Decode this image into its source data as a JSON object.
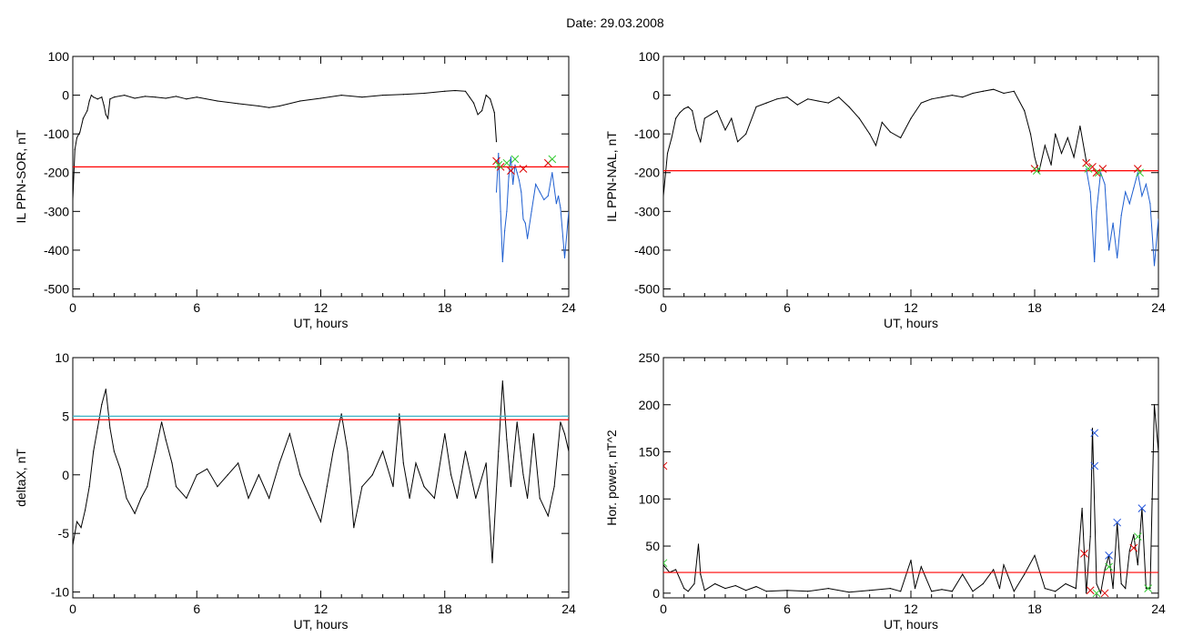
{
  "title": "Date:  29.03.2008",
  "colors": {
    "trace": "#000000",
    "threshold": "#ff0000",
    "threshold2": "#3cb4c8",
    "marked": "#1f5fd0",
    "marker_red": "#dd0000",
    "marker_green": "#33cc33",
    "marker_blue": "#2255dd"
  },
  "chart_data": [
    {
      "type": "line",
      "panel": "top-left",
      "xlabel": "UT, hours",
      "ylabel": "IL PPN-SOR, nT",
      "xlim": [
        0,
        24
      ],
      "ylim": [
        -520,
        100
      ],
      "xticks": [
        "0",
        "6",
        "12",
        "18",
        "24"
      ],
      "yticks": [
        "100",
        "0",
        "-100",
        "-200",
        "-300",
        "-400",
        "-500"
      ],
      "threshold": -185,
      "series": [
        {
          "x": [
            0,
            0.1,
            0.2,
            0.35,
            0.5,
            0.7,
            0.8,
            0.9,
            1.0,
            1.2,
            1.4,
            1.5,
            1.6,
            1.7,
            1.8,
            2.0,
            2.5,
            3,
            3.5,
            4,
            4.5,
            5,
            5.5,
            6,
            7,
            8,
            9,
            9.5,
            10,
            11,
            12,
            13,
            14,
            15,
            16,
            17,
            18,
            18.5,
            19,
            19.2,
            19.4,
            19.6,
            19.8,
            20,
            20.2,
            20.4,
            20.5
          ],
          "y": [
            -270,
            -140,
            -110,
            -95,
            -60,
            -40,
            -15,
            0,
            -5,
            -10,
            -5,
            -25,
            -50,
            -60,
            -10,
            -5,
            0,
            -8,
            -3,
            -5,
            -8,
            -3,
            -10,
            -5,
            -15,
            -22,
            -28,
            -32,
            -28,
            -15,
            -8,
            0,
            -5,
            0,
            2,
            5,
            10,
            12,
            10,
            -5,
            -20,
            -50,
            -40,
            0,
            -10,
            -45,
            -120
          ]
        },
        {
          "x": [
            20.5,
            20.6,
            20.7,
            20.8,
            20.9,
            21.0,
            21.1,
            21.2,
            21.3,
            21.4,
            21.5,
            21.6,
            21.7,
            21.8,
            21.9,
            22.0,
            22.2,
            22.4,
            22.6,
            22.8,
            23.0,
            23.2,
            23.4,
            23.5,
            23.6,
            23.8,
            24.0
          ],
          "y": [
            -250,
            -150,
            -300,
            -430,
            -350,
            -300,
            -210,
            -160,
            -230,
            -180,
            -200,
            -220,
            -250,
            -320,
            -330,
            -370,
            -300,
            -230,
            -250,
            -270,
            -260,
            -200,
            -280,
            -260,
            -290,
            -420,
            -300
          ]
        }
      ],
      "markers_red": [
        [
          20.5,
          -170
        ],
        [
          20.7,
          -185
        ],
        [
          21.2,
          -195
        ],
        [
          21.8,
          -190
        ],
        [
          23.0,
          -175
        ]
      ],
      "markers_green": [
        [
          20.6,
          -180
        ],
        [
          21.0,
          -175
        ],
        [
          21.4,
          -165
        ],
        [
          23.2,
          -165
        ]
      ]
    },
    {
      "type": "line",
      "panel": "top-right",
      "xlabel": "UT, hours",
      "ylabel": "IL PPN-NAL, nT",
      "xlim": [
        0,
        24
      ],
      "ylim": [
        -520,
        100
      ],
      "xticks": [
        "0",
        "6",
        "12",
        "18",
        "24"
      ],
      "yticks": [
        "100",
        "0",
        "-100",
        "-200",
        "-300",
        "-400",
        "-500"
      ],
      "threshold": -195,
      "series": [
        {
          "x": [
            0,
            0.2,
            0.4,
            0.6,
            0.8,
            1.0,
            1.2,
            1.4,
            1.6,
            1.8,
            2.0,
            2.3,
            2.6,
            3.0,
            3.3,
            3.6,
            4.0,
            4.5,
            5.0,
            5.5,
            6.0,
            6.5,
            7.0,
            7.5,
            8.0,
            8.5,
            9.0,
            9.5,
            10.0,
            10.3,
            10.6,
            11.0,
            11.5,
            12.0,
            12.5,
            13.0,
            13.5,
            14.0,
            14.5,
            15.0,
            15.5,
            16.0,
            16.5,
            17.0,
            17.5,
            17.8,
            18.0,
            18.2,
            18.5,
            18.8,
            19.0,
            19.3,
            19.6,
            19.9,
            20.2,
            20.5
          ],
          "y": [
            -260,
            -150,
            -110,
            -60,
            -45,
            -35,
            -30,
            -40,
            -90,
            -120,
            -60,
            -50,
            -40,
            -90,
            -60,
            -120,
            -100,
            -30,
            -20,
            -10,
            -5,
            -25,
            -10,
            -15,
            -20,
            -5,
            -30,
            -60,
            -100,
            -130,
            -70,
            -95,
            -110,
            -60,
            -20,
            -10,
            -5,
            0,
            -5,
            5,
            10,
            15,
            5,
            10,
            -40,
            -100,
            -160,
            -200,
            -130,
            -180,
            -100,
            -150,
            -110,
            -160,
            -80,
            -170
          ]
        },
        {
          "x": [
            20.5,
            20.7,
            20.9,
            21.0,
            21.2,
            21.4,
            21.6,
            21.8,
            22.0,
            22.2,
            22.4,
            22.6,
            22.8,
            23.0,
            23.2,
            23.4,
            23.6,
            23.8,
            24.0
          ],
          "y": [
            -190,
            -250,
            -430,
            -300,
            -200,
            -230,
            -400,
            -330,
            -420,
            -310,
            -250,
            -280,
            -240,
            -200,
            -260,
            -230,
            -280,
            -440,
            -320
          ]
        }
      ],
      "markers_red": [
        [
          18.0,
          -190
        ],
        [
          20.5,
          -175
        ],
        [
          20.8,
          -185
        ],
        [
          21.0,
          -200
        ],
        [
          21.3,
          -190
        ],
        [
          23.0,
          -190
        ]
      ],
      "markers_green": [
        [
          18.1,
          -195
        ],
        [
          20.6,
          -190
        ],
        [
          21.1,
          -200
        ],
        [
          23.1,
          -200
        ]
      ]
    },
    {
      "type": "line",
      "panel": "bottom-left",
      "xlabel": "UT, hours",
      "ylabel": "deltaX, nT",
      "xlim": [
        0,
        24
      ],
      "ylim": [
        -10.5,
        10
      ],
      "xticks": [
        "0",
        "6",
        "12",
        "18",
        "24"
      ],
      "yticks": [
        "10",
        "5",
        "0",
        "-5",
        "-10"
      ],
      "threshold": 4.7,
      "threshold2": 5.0,
      "series": [
        {
          "x": [
            0,
            0.2,
            0.4,
            0.6,
            0.8,
            1.0,
            1.2,
            1.4,
            1.6,
            1.8,
            2.0,
            2.3,
            2.6,
            3.0,
            3.3,
            3.6,
            4.0,
            4.3,
            4.5,
            4.8,
            5.0,
            5.5,
            6.0,
            6.5,
            7.0,
            7.5,
            8.0,
            8.5,
            9.0,
            9.5,
            10.0,
            10.5,
            11.0,
            11.5,
            12.0,
            12.3,
            12.6,
            13.0,
            13.3,
            13.6,
            14.0,
            14.5,
            15.0,
            15.5,
            15.8,
            16.0,
            16.3,
            16.6,
            17.0,
            17.5,
            18.0,
            18.3,
            18.6,
            19.0,
            19.5,
            20.0,
            20.3,
            20.6,
            20.8,
            21.0,
            21.2,
            21.5,
            21.8,
            22.0,
            22.3,
            22.6,
            23.0,
            23.3,
            23.6,
            23.8,
            24.0
          ],
          "y": [
            -6,
            -4,
            -4.5,
            -3,
            -1,
            2,
            4,
            6,
            7.3,
            4,
            2,
            0.5,
            -2,
            -3.3,
            -2,
            -1,
            2,
            4.5,
            3,
            1,
            -1,
            -2,
            0,
            0.5,
            -1,
            0,
            1,
            -2,
            0,
            -2,
            1,
            3.5,
            0,
            -2,
            -4,
            -1,
            2,
            5.2,
            2,
            -4.5,
            -1,
            0,
            2,
            -1,
            5.2,
            1,
            -2,
            1,
            -1,
            -2,
            3.5,
            0,
            -2,
            2,
            -2,
            1,
            -7.5,
            2,
            8,
            3,
            -1,
            4.5,
            0,
            -2,
            3.5,
            -2,
            -3.5,
            -1,
            4.5,
            3.5,
            2
          ]
        }
      ]
    },
    {
      "type": "line",
      "panel": "bottom-right",
      "xlabel": "UT, hours",
      "ylabel": "Hor. power, nT^2",
      "xlim": [
        0,
        24
      ],
      "ylim": [
        -5,
        250
      ],
      "xticks": [
        "0",
        "6",
        "12",
        "18",
        "24"
      ],
      "yticks": [
        "250",
        "200",
        "150",
        "100",
        "50",
        "0"
      ],
      "threshold": 22,
      "series": [
        {
          "x": [
            0,
            0.3,
            0.6,
            1.0,
            1.2,
            1.5,
            1.7,
            1.8,
            2.0,
            2.5,
            3,
            3.5,
            4,
            4.5,
            5,
            6,
            7,
            8,
            9,
            10,
            11,
            11.5,
            12,
            12.2,
            12.5,
            13,
            13.5,
            14,
            14.5,
            15,
            15.5,
            16,
            16.3,
            16.5,
            17,
            17.5,
            18,
            18.5,
            19,
            19.5,
            20,
            20.3,
            20.5,
            20.7,
            20.8,
            21.0,
            21.2,
            21.4,
            21.6,
            21.8,
            22.0,
            22.2,
            22.4,
            22.6,
            22.8,
            23.0,
            23.2,
            23.4,
            23.6,
            23.8,
            24.0
          ],
          "y": [
            30,
            22,
            25,
            5,
            2,
            10,
            52,
            20,
            3,
            10,
            5,
            8,
            3,
            7,
            2,
            3,
            2,
            5,
            1,
            3,
            5,
            2,
            35,
            5,
            28,
            2,
            4,
            2,
            20,
            2,
            10,
            25,
            5,
            30,
            2,
            20,
            40,
            5,
            2,
            10,
            5,
            90,
            0,
            60,
            175,
            10,
            0,
            25,
            40,
            5,
            75,
            10,
            5,
            45,
            62,
            30,
            90,
            5,
            5,
            200,
            150
          ]
        }
      ],
      "markers_red": [
        [
          0,
          135
        ],
        [
          20.4,
          42
        ],
        [
          20.7,
          3
        ],
        [
          21.4,
          0
        ],
        [
          22.8,
          48
        ]
      ],
      "markers_green": [
        [
          0,
          32
        ],
        [
          21.0,
          0
        ],
        [
          21.6,
          28
        ],
        [
          23.0,
          60
        ],
        [
          23.5,
          5
        ]
      ],
      "markers_blue": [
        [
          20.9,
          170
        ],
        [
          20.9,
          135
        ],
        [
          21.6,
          40
        ],
        [
          22.0,
          75
        ],
        [
          23.2,
          90
        ]
      ]
    }
  ]
}
